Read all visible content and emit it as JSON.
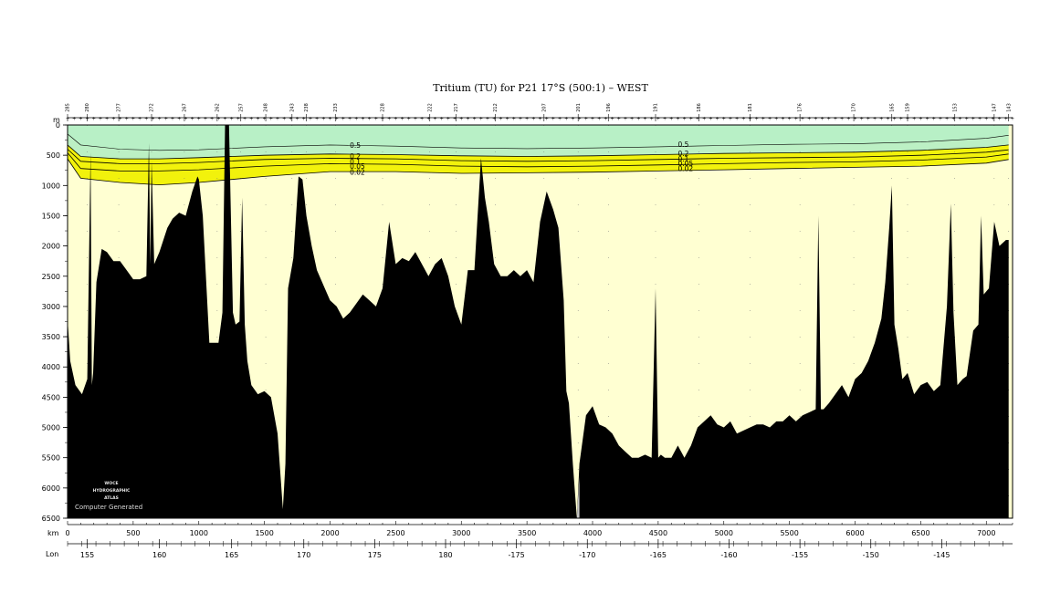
{
  "chart_data": {
    "type": "area",
    "title": "Tritium (TU) for P21 17°S (500:1) – WEST",
    "x_unit": "km",
    "y_unit": "m",
    "lon_label": "Lon",
    "xlim": [
      0,
      7200
    ],
    "ylim": [
      0,
      6500
    ],
    "x_ticks": [
      0,
      500,
      1000,
      1500,
      2000,
      2500,
      3000,
      3500,
      4000,
      4500,
      5000,
      5500,
      6000,
      6500,
      7000
    ],
    "y_ticks": [
      0,
      500,
      1000,
      1500,
      2000,
      2500,
      3000,
      3500,
      4000,
      4500,
      5000,
      5500,
      6000,
      6500
    ],
    "lon_ticks": [
      {
        "label": "155",
        "km": 150
      },
      {
        "label": "160",
        "km": 700
      },
      {
        "label": "165",
        "km": 1250
      },
      {
        "label": "170",
        "km": 1800
      },
      {
        "label": "175",
        "km": 2340
      },
      {
        "label": "180",
        "km": 2880
      },
      {
        "label": "-175",
        "km": 3420
      },
      {
        "label": "-170",
        "km": 3960
      },
      {
        "label": "-165",
        "km": 4500
      },
      {
        "label": "-160",
        "km": 5040
      },
      {
        "label": "-155",
        "km": 5580
      },
      {
        "label": "-150",
        "km": 6120
      },
      {
        "label": "-145",
        "km": 6660
      }
    ],
    "stations": [
      {
        "label": "285",
        "km": 0
      },
      {
        "label": "280",
        "km": 150
      },
      {
        "label": "277",
        "km": 390
      },
      {
        "label": "272",
        "km": 640
      },
      {
        "label": "267",
        "km": 890
      },
      {
        "label": "262",
        "km": 1140
      },
      {
        "label": "257",
        "km": 1320
      },
      {
        "label": "248",
        "km": 1510
      },
      {
        "label": "243",
        "km": 1710
      },
      {
        "label": "238",
        "km": 1820
      },
      {
        "label": "233",
        "km": 2040
      },
      {
        "label": "228",
        "km": 2400
      },
      {
        "label": "222",
        "km": 2760
      },
      {
        "label": "217",
        "km": 2960
      },
      {
        "label": "212",
        "km": 3260
      },
      {
        "label": "207",
        "km": 3630
      },
      {
        "label": "201",
        "km": 3890
      },
      {
        "label": "196",
        "km": 4120
      },
      {
        "label": "191",
        "km": 4480
      },
      {
        "label": "186",
        "km": 4810
      },
      {
        "label": "181",
        "km": 5200
      },
      {
        "label": "176",
        "km": 5580
      },
      {
        "label": "170",
        "km": 5990
      },
      {
        "label": "165",
        "km": 6280
      },
      {
        "label": "159",
        "km": 6400
      },
      {
        "label": "153",
        "km": 6760
      },
      {
        "label": "147",
        "km": 7060
      },
      {
        "label": "143",
        "km": 7170
      }
    ],
    "contour_levels": [
      "0.5",
      "0.2",
      "0.1",
      "0.05",
      "0.02"
    ],
    "contour_depths": {
      "km": [
        0,
        100,
        400,
        700,
        1000,
        1500,
        2000,
        2500,
        3000,
        3500,
        4000,
        4500,
        5000,
        5500,
        6000,
        6500,
        7000,
        7170
      ],
      "0.5": [
        150,
        330,
        400,
        420,
        410,
        360,
        330,
        350,
        380,
        390,
        380,
        360,
        340,
        320,
        310,
        280,
        220,
        170
      ],
      "0.2": [
        330,
        520,
        560,
        560,
        540,
        500,
        480,
        490,
        510,
        520,
        510,
        490,
        470,
        460,
        450,
        420,
        370,
        330
      ],
      "0.1": [
        400,
        600,
        640,
        640,
        620,
        570,
        550,
        560,
        590,
        600,
        590,
        570,
        550,
        540,
        530,
        500,
        450,
        410
      ],
      "0.05": [
        460,
        720,
        760,
        760,
        740,
        680,
        640,
        650,
        680,
        690,
        680,
        660,
        640,
        620,
        610,
        580,
        530,
        480
      ],
      "0.02": [
        560,
        880,
        950,
        990,
        950,
        850,
        770,
        770,
        800,
        790,
        780,
        760,
        740,
        720,
        700,
        680,
        630,
        570
      ]
    },
    "contour_label_positions": [
      {
        "km": 2150,
        "depths": [
          330,
          510,
          600,
          680,
          780
        ]
      },
      {
        "km": 4650,
        "depths": [
          320,
          470,
          560,
          630,
          720
        ]
      }
    ],
    "bottom_profile": {
      "km": [
        0,
        20,
        60,
        110,
        150,
        175,
        185,
        195,
        220,
        260,
        300,
        350,
        400,
        450,
        500,
        550,
        600,
        620,
        630,
        640,
        660,
        700,
        760,
        800,
        850,
        900,
        950,
        990,
        1000,
        1030,
        1080,
        1100,
        1150,
        1180,
        1200,
        1210,
        1230,
        1260,
        1280,
        1310,
        1330,
        1350,
        1370,
        1400,
        1450,
        1500,
        1550,
        1600,
        1640,
        1660,
        1680,
        1720,
        1760,
        1790,
        1820,
        1860,
        1900,
        1950,
        2000,
        2050,
        2100,
        2150,
        2200,
        2250,
        2300,
        2350,
        2400,
        2450,
        2500,
        2550,
        2600,
        2650,
        2700,
        2750,
        2800,
        2850,
        2900,
        2950,
        3000,
        3050,
        3100,
        3150,
        3180,
        3210,
        3250,
        3300,
        3350,
        3400,
        3450,
        3500,
        3550,
        3600,
        3650,
        3700,
        3740,
        3780,
        3800,
        3820,
        3850,
        3880,
        3900,
        3950,
        4000,
        4050,
        4100,
        4150,
        4200,
        4250,
        4300,
        4350,
        4400,
        4450,
        4480,
        4500,
        4520,
        4550,
        4600,
        4650,
        4700,
        4750,
        4800,
        4850,
        4900,
        4950,
        5000,
        5050,
        5100,
        5150,
        5200,
        5250,
        5300,
        5350,
        5400,
        5450,
        5500,
        5550,
        5600,
        5650,
        5700,
        5720,
        5740,
        5760,
        5800,
        5850,
        5900,
        5950,
        6000,
        6050,
        6100,
        6150,
        6200,
        6230,
        6260,
        6280,
        6300,
        6330,
        6360,
        6400,
        6450,
        6500,
        6550,
        6600,
        6650,
        6700,
        6730,
        6750,
        6780,
        6820,
        6850,
        6900,
        6940,
        6960,
        6980,
        7020,
        7060,
        7100,
        7150,
        7170
      ],
      "depth": [
        3200,
        3900,
        4300,
        4450,
        4200,
        450,
        4300,
        4100,
        2600,
        2050,
        2100,
        2250,
        2250,
        2400,
        2550,
        2550,
        2500,
        300,
        2300,
        600,
        2300,
        2100,
        1700,
        1550,
        1450,
        1500,
        1100,
        850,
        900,
        1500,
        3600,
        3600,
        3600,
        3100,
        0,
        0,
        0,
        3100,
        3300,
        3250,
        1200,
        3300,
        3900,
        4300,
        4450,
        4400,
        4500,
        5100,
        6350,
        5600,
        2700,
        2200,
        850,
        900,
        1500,
        2000,
        2400,
        2650,
        2900,
        3000,
        3200,
        3100,
        2950,
        2800,
        2900,
        3000,
        2700,
        1600,
        2300,
        2200,
        2250,
        2100,
        2300,
        2500,
        2300,
        2200,
        2500,
        3000,
        3300,
        2400,
        2400,
        550,
        1200,
        1600,
        2300,
        2500,
        2500,
        2400,
        2500,
        2400,
        2600,
        1600,
        1100,
        1400,
        1700,
        2900,
        4400,
        4600,
        5600,
        6500,
        5600,
        4800,
        4650,
        4950,
        5000,
        5100,
        5300,
        5400,
        5500,
        5500,
        5450,
        5500,
        2700,
        5500,
        5450,
        5500,
        5500,
        5300,
        5500,
        5300,
        5000,
        4900,
        4800,
        4950,
        5000,
        4900,
        5100,
        5050,
        5000,
        4950,
        4950,
        5000,
        4900,
        4900,
        4800,
        4900,
        4800,
        4750,
        4700,
        1500,
        4700,
        4700,
        4600,
        4450,
        4300,
        4500,
        4200,
        4100,
        3900,
        3600,
        3200,
        2600,
        1700,
        1000,
        3300,
        3700,
        4200,
        4100,
        4450,
        4300,
        4250,
        4400,
        4300,
        3000,
        1300,
        3100,
        4300,
        4200,
        4150,
        3400,
        3300,
        1500,
        2800,
        2700,
        1600,
        2000,
        1900,
        1900,
        2100
      ]
    },
    "trench": {
      "km": [
        3820,
        3850,
        3880,
        3900
      ],
      "depth": [
        6500,
        6500,
        6500,
        5800
      ]
    },
    "colors": {
      "tu_above_0_5": "#b8f0c6",
      "tu_0_2_to_0_5": "#bcf0c4",
      "tu_0_02_to_0_2": "#f2f20c",
      "tu_below_0_02": "#ffffd2",
      "bottom": "#000000",
      "trench_fill": "#c8c8c8"
    },
    "watermark": [
      "WOCE",
      "HYDROGRAPHIC",
      "ATLAS"
    ],
    "watermark_caption": "Computer Generated"
  }
}
